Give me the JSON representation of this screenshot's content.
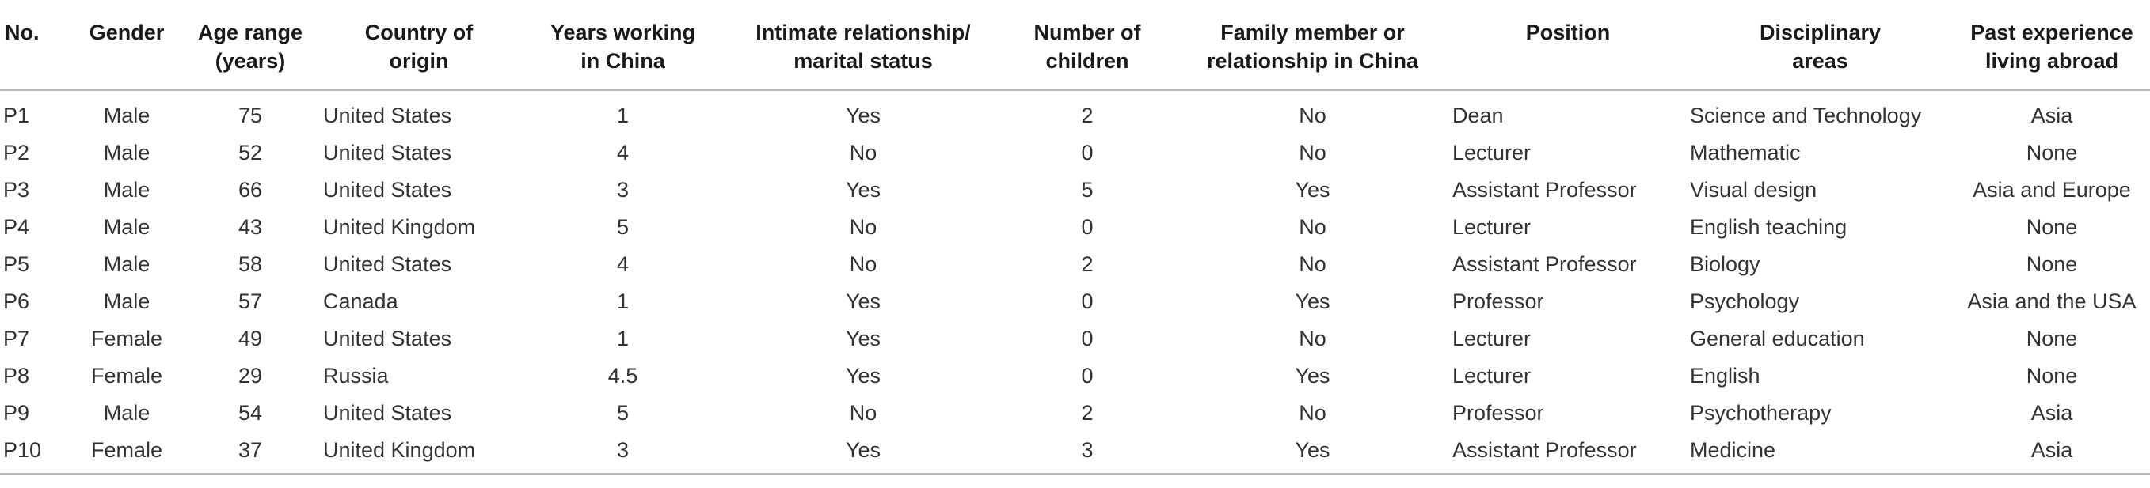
{
  "table": {
    "headers": [
      [
        "No."
      ],
      [
        "Gender"
      ],
      [
        "Age range",
        "(years)"
      ],
      [
        "Country of",
        "origin"
      ],
      [
        "Years working",
        "in China"
      ],
      [
        "Intimate relationship/",
        "marital status"
      ],
      [
        "Number of",
        "children"
      ],
      [
        "Family member or",
        "relationship in China"
      ],
      [
        "Position"
      ],
      [
        "Disciplinary",
        "areas"
      ],
      [
        "Past experience",
        "living abroad"
      ]
    ],
    "rows": [
      [
        "P1",
        "Male",
        "75",
        "United States",
        "1",
        "Yes",
        "2",
        "No",
        "Dean",
        "Science and Technology",
        "Asia"
      ],
      [
        "P2",
        "Male",
        "52",
        "United States",
        "4",
        "No",
        "0",
        "No",
        "Lecturer",
        "Mathematic",
        "None"
      ],
      [
        "P3",
        "Male",
        "66",
        "United States",
        "3",
        "Yes",
        "5",
        "Yes",
        "Assistant Professor",
        "Visual design",
        "Asia and Europe"
      ],
      [
        "P4",
        "Male",
        "43",
        "United Kingdom",
        "5",
        "No",
        "0",
        "No",
        "Lecturer",
        "English teaching",
        "None"
      ],
      [
        "P5",
        "Male",
        "58",
        "United States",
        "4",
        "No",
        "2",
        "No",
        "Assistant Professor",
        "Biology",
        "None"
      ],
      [
        "P6",
        "Male",
        "57",
        "Canada",
        "1",
        "Yes",
        "0",
        "Yes",
        "Professor",
        "Psychology",
        "Asia and the USA"
      ],
      [
        "P7",
        "Female",
        "49",
        "United States",
        "1",
        "Yes",
        "0",
        "No",
        "Lecturer",
        "General education",
        "None"
      ],
      [
        "P8",
        "Female",
        "29",
        "Russia",
        "4.5",
        "Yes",
        "0",
        "Yes",
        "Lecturer",
        "English",
        "None"
      ],
      [
        "P9",
        "Male",
        "54",
        "United States",
        "5",
        "No",
        "2",
        "No",
        "Professor",
        "Psychotherapy",
        "Asia"
      ],
      [
        "P10",
        "Female",
        "37",
        "United Kingdom",
        "3",
        "Yes",
        "3",
        "Yes",
        "Assistant Professor",
        "Medicine",
        "Asia"
      ]
    ]
  }
}
